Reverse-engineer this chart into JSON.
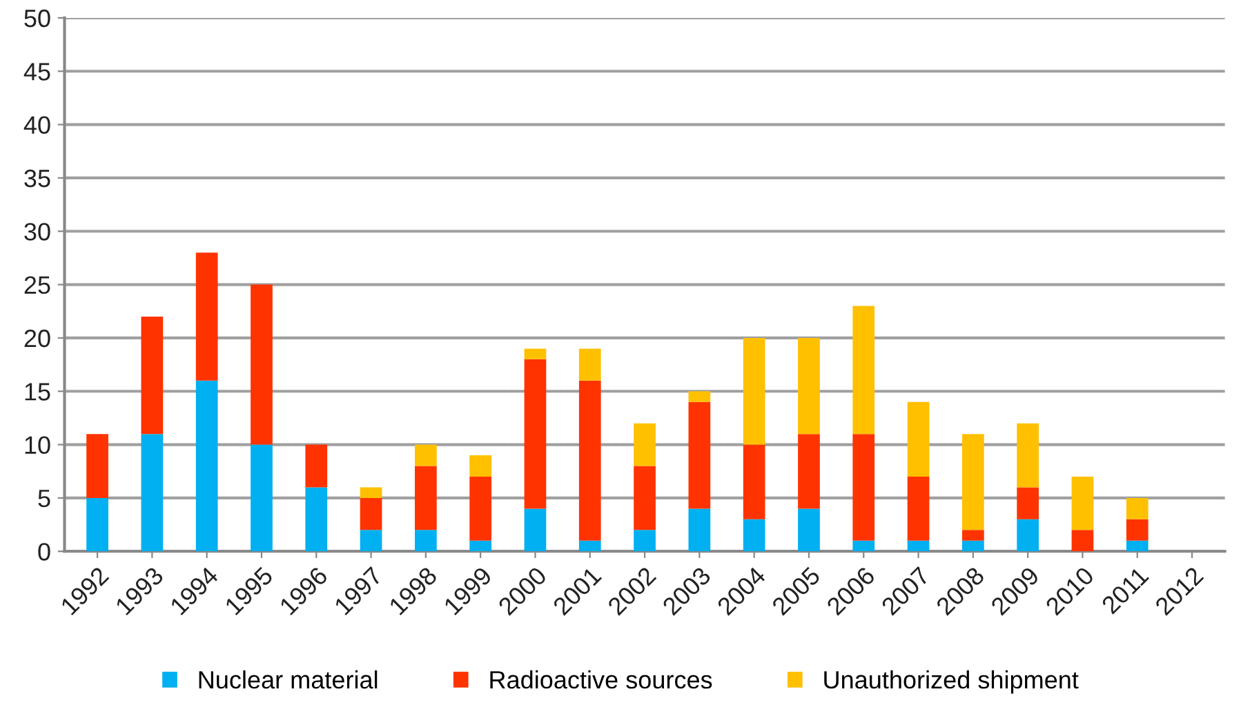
{
  "chart_data": {
    "type": "bar",
    "stacked": true,
    "categories": [
      "1992",
      "1993",
      "1994",
      "1995",
      "1996",
      "1997",
      "1998",
      "1999",
      "2000",
      "2001",
      "2002",
      "2003",
      "2004",
      "2005",
      "2006",
      "2007",
      "2008",
      "2009",
      "2010",
      "2011",
      "2012"
    ],
    "series": [
      {
        "name": "Nuclear material",
        "color": "#00b0f0",
        "values": [
          5,
          11,
          16,
          10,
          6,
          2,
          2,
          1,
          4,
          1,
          2,
          4,
          3,
          4,
          1,
          1,
          1,
          3,
          0,
          1,
          0
        ]
      },
      {
        "name": "Radioactive sources",
        "color": "#ff3300",
        "values": [
          6,
          11,
          12,
          15,
          4,
          3,
          6,
          6,
          14,
          15,
          6,
          10,
          7,
          7,
          10,
          6,
          1,
          3,
          2,
          2,
          0
        ]
      },
      {
        "name": "Unauthorized shipment",
        "color": "#ffc000",
        "values": [
          0,
          0,
          0,
          0,
          0,
          1,
          2,
          2,
          1,
          3,
          4,
          1,
          10,
          9,
          12,
          7,
          9,
          6,
          5,
          2,
          0
        ]
      }
    ],
    "ylim": [
      0,
      50
    ],
    "yticks": [
      0,
      5,
      10,
      15,
      20,
      25,
      30,
      35,
      40,
      45,
      50
    ],
    "grid": "y",
    "legend": "bottom"
  }
}
